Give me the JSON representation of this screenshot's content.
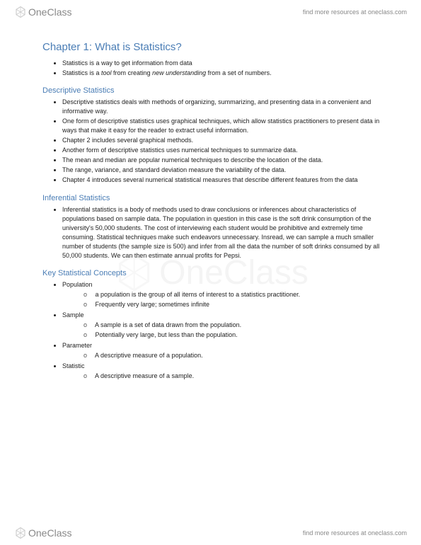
{
  "brand": {
    "one": "One",
    "class": "Class",
    "tagline": "find more resources at oneclass.com",
    "icon_fill": "#d0d0d0"
  },
  "title": "Chapter 1: What is Statistics?",
  "intro": [
    "Statistics is a way to get information from data",
    "Statistics is a <i>tool</i> from creating <i>new understanding</i> from a set of numbers."
  ],
  "sections": [
    {
      "heading": "Descriptive Statistics",
      "bullets": [
        "Descriptive statistics deals with methods of organizing, summarizing, and presenting data in a convenient and informative way.",
        "One form of descriptive statistics uses graphical techniques, which allow statistics practitioners to present data in ways that make it easy for the reader to extract useful information.",
        "Chapter 2 includes several graphical methods.",
        "Another form of descriptive statistics uses numerical techniques to summarize data.",
        " The mean and median are popular numerical techniques to describe the location of the data.",
        "The range, variance, and standard deviation measure the variability of the data.",
        "Chapter 4 introduces several numerical statistical measures that describe different features from the data"
      ]
    },
    {
      "heading": "Inferential Statistics",
      "bullets": [
        "Inferential statistics is a body of methods used to draw conclusions or inferences about characteristics of populations based on sample data. The population in question in this case is the soft drink consumption of the university's 50,000 students. The cost of interviewing each student would be prohibitive and extremely time consuming. Statistical techniques make such endeavors unnecessary. Insread, we can sample a much smaller number of students (the sample size is 500) and infer from all the data the number of soft drinks consumed by all 50,000 students. We can then estimate annual profits for Pepsi."
      ]
    },
    {
      "heading": "Key Statistical Concepts",
      "bullets_nested": [
        {
          "text": "Population",
          "sub": [
            "a population is the group of all items of interest to a statistics practitioner.",
            "Frequently very large; sometimes infinite"
          ]
        },
        {
          "text": "Sample",
          "sub": [
            "A sample is a set of data drawn from the population.",
            "Potentially very large, but less than the population."
          ]
        },
        {
          "text": "Parameter",
          "sub": [
            "A descriptive measure of a population."
          ]
        },
        {
          "text": "Statistic",
          "sub": [
            "A descriptive measure of a sample."
          ]
        }
      ]
    }
  ]
}
